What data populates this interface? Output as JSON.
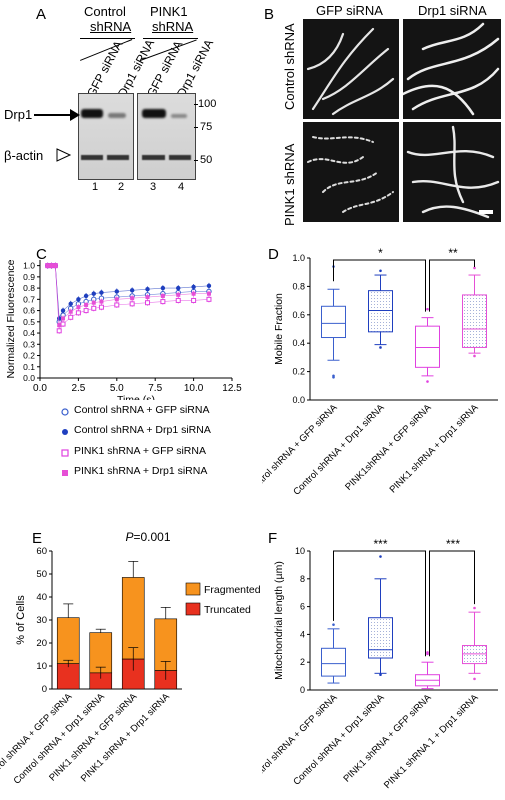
{
  "panels": {
    "A": {
      "label": "A",
      "group1": "Control shRNA",
      "group2": "PINK1 shRNA",
      "group1_lines": [
        "Control",
        "shRNA"
      ],
      "group2_lines": [
        "PINK1",
        "shRNA"
      ],
      "lanes": [
        "GFP siRNA",
        "Drp1 siRNA",
        "GFP siRNA",
        "Drp1 siRNA"
      ],
      "lane_numbers": [
        "1",
        "2",
        "3",
        "4"
      ],
      "bands": [
        "Drp1",
        "β-actin"
      ],
      "markers": [
        "100",
        "75",
        "50"
      ]
    },
    "B": {
      "label": "B",
      "columns": [
        "GFP siRNA",
        "Drp1 siRNA"
      ],
      "rows": [
        "Control shRNA",
        "PINK1 shRNA"
      ]
    },
    "C": {
      "label": "C"
    },
    "D": {
      "label": "D"
    },
    "E": {
      "label": "E"
    },
    "F": {
      "label": "F"
    }
  },
  "colors": {
    "control_gfp": "#3a5fcd",
    "control_drp1": "#1f3fbf",
    "pink1_gfp": "#e040e0",
    "pink1_drp1": "#e64fd6",
    "fragmented": "#f7931e",
    "truncated": "#e8311f"
  },
  "chart_data": [
    {
      "panel": "C",
      "type": "line",
      "xlabel": "Time (s)",
      "ylabel": "Normalized Fluorescence",
      "xlim": [
        0,
        12.5
      ],
      "ylim": [
        0,
        1.05
      ],
      "xticks": [
        "0.0",
        "2.5",
        "5.0",
        "7.5",
        "10.0",
        "12.5"
      ],
      "yticks": [
        "0.0",
        "0.1",
        "0.2",
        "0.3",
        "0.4",
        "0.5",
        "0.6",
        "0.7",
        "0.8",
        "0.9",
        "1.0"
      ],
      "x": [
        0.5,
        0.75,
        1.0,
        1.25,
        1.5,
        2.0,
        2.5,
        3.0,
        3.5,
        4.0,
        5.0,
        6.0,
        7.0,
        8.0,
        9.0,
        10.0,
        11.0
      ],
      "series": [
        {
          "name": "Control shRNA + GFP siRNA",
          "marker": "open-circle",
          "color": "#3a5fcd",
          "values": [
            1.0,
            1.0,
            1.0,
            0.5,
            0.56,
            0.62,
            0.66,
            0.68,
            0.7,
            0.71,
            0.72,
            0.73,
            0.74,
            0.75,
            0.76,
            0.77,
            0.77
          ]
        },
        {
          "name": "Control shRNA + Drp1 siRNA",
          "marker": "filled-circle",
          "color": "#1f3fbf",
          "values": [
            1.0,
            1.0,
            1.0,
            0.53,
            0.6,
            0.66,
            0.7,
            0.73,
            0.75,
            0.76,
            0.77,
            0.78,
            0.79,
            0.8,
            0.8,
            0.81,
            0.82
          ]
        },
        {
          "name": "PINK1 shRNA + GFP siRNA",
          "marker": "open-square",
          "color": "#e040e0",
          "values": [
            1.0,
            1.0,
            1.0,
            0.42,
            0.48,
            0.54,
            0.58,
            0.6,
            0.62,
            0.63,
            0.65,
            0.66,
            0.67,
            0.68,
            0.69,
            0.69,
            0.7
          ]
        },
        {
          "name": "PINK1 shRNA + Drp1 siRNA",
          "marker": "filled-square",
          "color": "#e64fd6",
          "values": [
            1.0,
            1.0,
            1.0,
            0.47,
            0.53,
            0.59,
            0.63,
            0.65,
            0.67,
            0.68,
            0.7,
            0.71,
            0.72,
            0.73,
            0.74,
            0.75,
            0.75
          ]
        }
      ]
    },
    {
      "panel": "D",
      "type": "box",
      "ylabel": "Mobile Fraction",
      "ylim": [
        0,
        1.0
      ],
      "yticks": [
        "0.0",
        "0.2",
        "0.4",
        "0.6",
        "0.8",
        "1.0"
      ],
      "categories": [
        "Control shRNA + GFP siRNA",
        "Control shRNA + Drp1 siRNA",
        "PINK1shRNA + GFP siRNA",
        "PINK1 shRNA + Drp1 siRNA"
      ],
      "boxes": [
        {
          "whisker_low": 0.28,
          "q1": 0.44,
          "median": 0.54,
          "q3": 0.66,
          "whisker_high": 0.78,
          "outliers": [
            0.16,
            0.17,
            0.94
          ],
          "color": "#3a5fcd"
        },
        {
          "whisker_low": 0.39,
          "q1": 0.48,
          "median": 0.63,
          "q3": 0.77,
          "whisker_high": 0.88,
          "outliers": [
            0.37,
            0.91
          ],
          "color": "#1f3fbf"
        },
        {
          "whisker_low": 0.17,
          "q1": 0.23,
          "median": 0.37,
          "q3": 0.52,
          "whisker_high": 0.58,
          "outliers": [
            0.13,
            0.64
          ],
          "color": "#e040e0"
        },
        {
          "whisker_low": 0.33,
          "q1": 0.37,
          "median": 0.5,
          "q3": 0.74,
          "whisker_high": 0.88,
          "outliers": [
            0.31,
            0.93
          ],
          "color": "#e64fd6"
        }
      ],
      "significance": [
        "*",
        "**"
      ]
    },
    {
      "panel": "E",
      "type": "bar",
      "stacked": true,
      "title": "P=0.001",
      "title_italic": "P",
      "title_rest": "=0.001",
      "ylabel": "% of Cells",
      "ylim": [
        0,
        60
      ],
      "yticks": [
        "0",
        "10",
        "20",
        "30",
        "40",
        "50",
        "60"
      ],
      "categories": [
        "Control shRNA + GFP siRNA",
        "Control shRNA + Drp1 siRNA",
        "PINK1 shRNA + GFP siRNA",
        "PINK1 shRNA + Drp1 siRNA"
      ],
      "series": [
        {
          "name": "Truncated",
          "values": [
            11,
            7,
            13,
            8
          ],
          "errors": [
            1.5,
            2.5,
            5,
            4
          ]
        },
        {
          "name": "Fragmented",
          "values": [
            20,
            17.5,
            35.5,
            22.5
          ],
          "totals": [
            31,
            24.5,
            48.5,
            30.5
          ],
          "errors": [
            6,
            1.5,
            7,
            5
          ]
        }
      ],
      "legend": [
        "Fragmented",
        "Truncated"
      ]
    },
    {
      "panel": "F",
      "type": "box",
      "ylabel": "Mitochondrial length (µm)",
      "ylim": [
        0,
        10
      ],
      "yticks": [
        "0",
        "2",
        "4",
        "6",
        "8",
        "10"
      ],
      "categories": [
        "Control shRNA + GFP siRNA",
        "Control shRNA + Drp1 siRNA",
        "PINK1 shRNA + GFP siRNA",
        "PINK1 shRNA 1 + Drp1 siRNA"
      ],
      "boxes": [
        {
          "whisker_low": 0.5,
          "q1": 1.0,
          "median": 1.9,
          "q3": 3.0,
          "whisker_high": 4.4,
          "outliers": [
            4.7
          ],
          "color": "#3a5fcd"
        },
        {
          "whisker_low": 1.2,
          "q1": 2.3,
          "median": 2.9,
          "q3": 5.2,
          "whisker_high": 8.0,
          "outliers": [
            9.6,
            1.1
          ],
          "color": "#1f3fbf"
        },
        {
          "whisker_low": 0.1,
          "q1": 0.3,
          "median": 0.7,
          "q3": 1.1,
          "whisker_high": 2.0,
          "outliers": [
            2.6,
            2.7
          ],
          "color": "#e040e0"
        },
        {
          "whisker_low": 1.2,
          "q1": 1.9,
          "median": 2.6,
          "q3": 3.2,
          "whisker_high": 5.6,
          "outliers": [
            5.9,
            0.8
          ],
          "color": "#e64fd6"
        }
      ],
      "significance": [
        "***",
        "***"
      ]
    }
  ]
}
